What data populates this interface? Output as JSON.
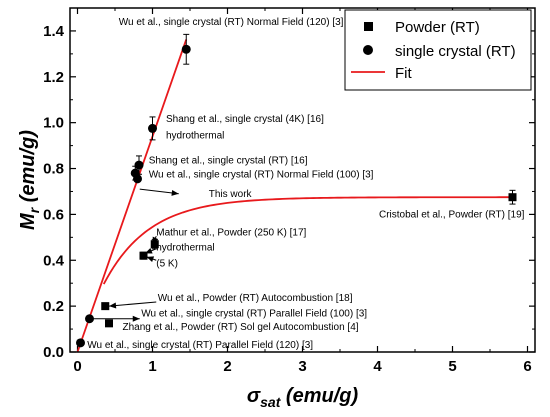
{
  "chart_data": {
    "type": "scatter",
    "xlabel": "σ",
    "xlabel_sub": "sat",
    "xlabel_unit": " (emu/g)",
    "ylabel": "M",
    "ylabel_sub": "r",
    "ylabel_unit": " (emu/g)",
    "xlim": [
      -0.1,
      6.1
    ],
    "ylim": [
      0.0,
      1.5
    ],
    "x_ticks": [
      0,
      1,
      2,
      3,
      4,
      5,
      6
    ],
    "y_ticks": [
      0.0,
      0.2,
      0.4,
      0.6,
      0.8,
      1.0,
      1.2,
      1.4
    ],
    "x_tick_labels": [
      "0",
      "1",
      "2",
      "3",
      "4",
      "5",
      "6"
    ],
    "y_tick_labels": [
      "0.0",
      "0.2",
      "0.4",
      "0.6",
      "0.8",
      "1.0",
      "1.2",
      "1.4"
    ],
    "legend": {
      "position": "top-right",
      "entries": [
        "Powder (RT)",
        "single crystal (RT)",
        "Fit"
      ]
    },
    "series": [
      {
        "name": "Powder (RT)",
        "marker": "square",
        "points": [
          {
            "x": 0.37,
            "y": 0.2
          },
          {
            "x": 0.42,
            "y": 0.125
          },
          {
            "x": 0.88,
            "y": 0.42
          },
          {
            "x": 1.03,
            "y": 0.47
          },
          {
            "x": 5.8,
            "y": 0.675
          }
        ],
        "errors": [
          0,
          0,
          0.015,
          0.02,
          0.03
        ]
      },
      {
        "name": "single crystal (RT)",
        "marker": "circle",
        "points": [
          {
            "x": 0.04,
            "y": 0.04
          },
          {
            "x": 0.16,
            "y": 0.145
          },
          {
            "x": 0.77,
            "y": 0.78
          },
          {
            "x": 0.82,
            "y": 0.815
          },
          {
            "x": 0.8,
            "y": 0.755
          },
          {
            "x": 1.0,
            "y": 0.975
          },
          {
            "x": 1.45,
            "y": 1.32
          }
        ],
        "errors": [
          0,
          0,
          0.03,
          0.04,
          0,
          0.05,
          0.065
        ]
      }
    ],
    "fit_linear": {
      "slope": 0.94,
      "x_range": [
        0,
        1.45
      ]
    },
    "fit_saturation": {
      "plateau": 0.675,
      "rate": 1.65,
      "x_range": [
        0.35,
        5.85
      ]
    },
    "annotations": [
      {
        "text": "Wu et al., single crystal (RT) Normal Field (120) [3]",
        "x": 0.55,
        "y": 1.44
      },
      {
        "text": "Shang et al., single crystal (4K) [16]",
        "x": 1.18,
        "y": 1.015
      },
      {
        "text": "hydrothermal",
        "x": 1.18,
        "y": 0.945
      },
      {
        "text": "Shang et al., single crystal (RT) [16]",
        "x": 0.95,
        "y": 0.835
      },
      {
        "text": "Wu et al., single crystal (RT) Normal Field  (100) [3]",
        "x": 0.95,
        "y": 0.775
      },
      {
        "text": "This work",
        "x": 1.75,
        "y": 0.69
      },
      {
        "text": "Cristobal et al., Powder (RT) [19]",
        "x": 4.02,
        "y": 0.6
      },
      {
        "text": "Mathur et al., Powder (250 K) [17]",
        "x": 1.05,
        "y": 0.52
      },
      {
        "text": "hydrothermal",
        "x": 1.05,
        "y": 0.455
      },
      {
        "text": "(5 K)",
        "x": 1.05,
        "y": 0.385
      },
      {
        "text": "Wu et al., Powder (RT) Autocombustion [18]",
        "x": 1.07,
        "y": 0.235
      },
      {
        "text": "Wu et al., single crystal (RT) Parallel Field (100) [3]",
        "x": 0.85,
        "y": 0.168
      },
      {
        "text": "Zhang et al., Powder (RT) Sol gel Autocombustion [4]",
        "x": 0.6,
        "y": 0.11
      },
      {
        "text": "Wu et al., single crystal (RT) Parallel Field (120) [3]",
        "x": 0.13,
        "y": 0.03
      }
    ],
    "arrows": [
      {
        "from": [
          0.2,
          0.145
        ],
        "to": [
          0.83,
          0.145
        ]
      },
      {
        "from": [
          1.05,
          0.218
        ],
        "to": [
          0.42,
          0.2
        ]
      },
      {
        "from": [
          0.83,
          0.71
        ],
        "to": [
          1.35,
          0.69
        ]
      },
      {
        "from": [
          1.05,
          0.45
        ],
        "to": [
          0.9,
          0.43
        ]
      },
      {
        "from": [
          1.05,
          0.4
        ],
        "to": [
          0.92,
          0.415
        ]
      },
      {
        "from": [
          1.05,
          0.505
        ],
        "to": [
          1.0,
          0.47
        ]
      }
    ]
  }
}
